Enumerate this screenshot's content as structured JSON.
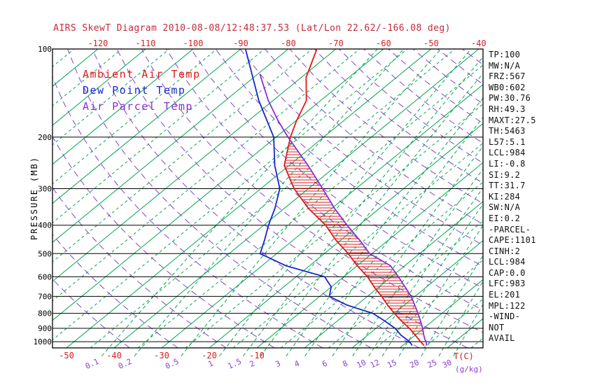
{
  "title": "AIRS SkewT Diagram 2010-08-08/12:48:37.53 (Lat/Lon 22.62/-166.08 deg)",
  "legend": {
    "items": [
      {
        "label": "Ambient Air Temp",
        "color": "#e01818"
      },
      {
        "label": "Dew Point Temp",
        "color": "#1626cc"
      },
      {
        "label": "Air Parcel Temp",
        "color": "#8a2fd0"
      }
    ]
  },
  "axes": {
    "ylabel": "PRESSURE (MB)",
    "temp_unit": "T(C)",
    "mixing_ratio_unit": "(g/kg)",
    "pressure_ticks": [
      100,
      200,
      300,
      400,
      500,
      600,
      700,
      800,
      900,
      1000
    ],
    "top_temp_ticks": [
      -120,
      -110,
      -100,
      -90,
      -80,
      -70,
      -60,
      -50,
      -40
    ],
    "bottom_temp_ticks": [
      -50,
      -40,
      -30,
      -20,
      -10
    ],
    "mixing_ratio_ticks": [
      0.1,
      0.2,
      0.5,
      1,
      1.5,
      2,
      3,
      4,
      6,
      8,
      10,
      12,
      15,
      20,
      25,
      30
    ]
  },
  "stats": {
    "lines": [
      "TP:100",
      "MW:N/A",
      "FRZ:567",
      "WB0:602",
      "PW:30.76",
      "RH:49.3",
      "MAXT:27.5",
      "TH:5463",
      "L57:5.1",
      "LCL:984",
      "LI:-0.8",
      "SI:9.2",
      "TT:31.7",
      "KI:284",
      "SW:N/A",
      "EI:0.2",
      "-PARCEL-",
      "CAPE:1101",
      "CINH:2",
      "LCL:984",
      "CAP:0.0",
      "LFC:983",
      "EL:201",
      "MPL:122",
      "-WIND-",
      "NOT",
      "AVAIL"
    ]
  },
  "colors": {
    "isotherm": "#00a64f",
    "adiabat": "#8a3fd1",
    "pressure_line": "#000000",
    "hatch": "#d42020",
    "tick_red": "#d42020",
    "tick_purple": "#8a3fd1",
    "title": "#c62a3c",
    "stats_text": "#101010"
  },
  "chart_data": {
    "type": "line",
    "title": "AIRS SkewT Diagram 2010-08-08/12:48:37.53 (Lat/Lon 22.62/-166.08 deg)",
    "x_axis": {
      "label": "T(C)",
      "units": "degC",
      "skewed": true
    },
    "y_axis": {
      "label": "PRESSURE (MB)",
      "scale": "log",
      "range": [
        100,
        1050
      ]
    },
    "grid": {
      "isotherms_solid_degC": [
        -160,
        -150,
        -140,
        -130,
        -120,
        -110,
        -100,
        -90,
        -80,
        -70,
        -60,
        -50,
        -40,
        -30,
        -20,
        -10,
        0,
        10,
        20,
        30,
        40
      ],
      "isotherms_dashed_degC": [
        -155,
        -145,
        -135,
        -125,
        -115,
        -105,
        -95,
        -85,
        -75,
        -65,
        -55,
        -45,
        -35,
        -25,
        -15,
        -5,
        5,
        15,
        25,
        35
      ],
      "dry_adiabats_theta_degC": [
        -40,
        -30,
        -20,
        -10,
        0,
        10,
        20,
        30,
        40,
        50,
        60,
        70,
        80,
        90,
        100,
        110,
        120,
        130,
        140,
        150,
        160,
        170
      ],
      "mixing_ratio_g_per_kg": [
        0.1,
        0.2,
        0.5,
        1,
        1.5,
        2,
        3,
        4,
        6,
        8,
        10,
        12,
        15,
        20,
        25,
        30
      ]
    },
    "series": [
      {
        "name": "Ambient Air Temp",
        "color": "#e01818",
        "points_p_T": [
          [
            1030,
            24.5
          ],
          [
            1000,
            22.8
          ],
          [
            950,
            20
          ],
          [
            900,
            17
          ],
          [
            850,
            13.5
          ],
          [
            800,
            10
          ],
          [
            750,
            6.5
          ],
          [
            700,
            3
          ],
          [
            650,
            -1
          ],
          [
            600,
            -5
          ],
          [
            550,
            -10
          ],
          [
            500,
            -15
          ],
          [
            450,
            -21
          ],
          [
            400,
            -27
          ],
          [
            350,
            -35
          ],
          [
            300,
            -43
          ],
          [
            250,
            -51
          ],
          [
            200,
            -57
          ],
          [
            175,
            -60
          ],
          [
            150,
            -63
          ],
          [
            125,
            -69
          ],
          [
            100,
            -74
          ]
        ]
      },
      {
        "name": "Dew Point Temp",
        "color": "#1626cc",
        "points_p_T": [
          [
            1030,
            22
          ],
          [
            1000,
            20.5
          ],
          [
            950,
            17
          ],
          [
            900,
            14
          ],
          [
            850,
            10
          ],
          [
            800,
            5.5
          ],
          [
            750,
            -2
          ],
          [
            700,
            -8
          ],
          [
            650,
            -10
          ],
          [
            600,
            -14
          ],
          [
            550,
            -25
          ],
          [
            500,
            -33.5
          ],
          [
            450,
            -36
          ],
          [
            400,
            -39
          ],
          [
            350,
            -42
          ],
          [
            300,
            -46
          ],
          [
            250,
            -53
          ],
          [
            200,
            -60.5
          ],
          [
            150,
            -73
          ],
          [
            100,
            -89
          ]
        ]
      },
      {
        "name": "Air Parcel Temp",
        "color": "#8a2fd0",
        "points_p_T": [
          [
            1030,
            25
          ],
          [
            1000,
            24
          ],
          [
            984,
            23.2
          ],
          [
            950,
            21.8
          ],
          [
            900,
            19.8
          ],
          [
            850,
            17.5
          ],
          [
            800,
            15
          ],
          [
            750,
            12.2
          ],
          [
            700,
            9.2
          ],
          [
            650,
            5.5
          ],
          [
            600,
            1.5
          ],
          [
            550,
            -3
          ],
          [
            500,
            -10.5
          ],
          [
            450,
            -16
          ],
          [
            400,
            -22.5
          ],
          [
            350,
            -29.5
          ],
          [
            300,
            -37
          ],
          [
            250,
            -46
          ],
          [
            200,
            -57.5
          ],
          [
            175,
            -64
          ],
          [
            150,
            -71
          ],
          [
            122,
            -79.5
          ]
        ]
      }
    ],
    "cape_hatch": {
      "color": "#d42020",
      "pressure_range": [
        201,
        950
      ]
    }
  }
}
